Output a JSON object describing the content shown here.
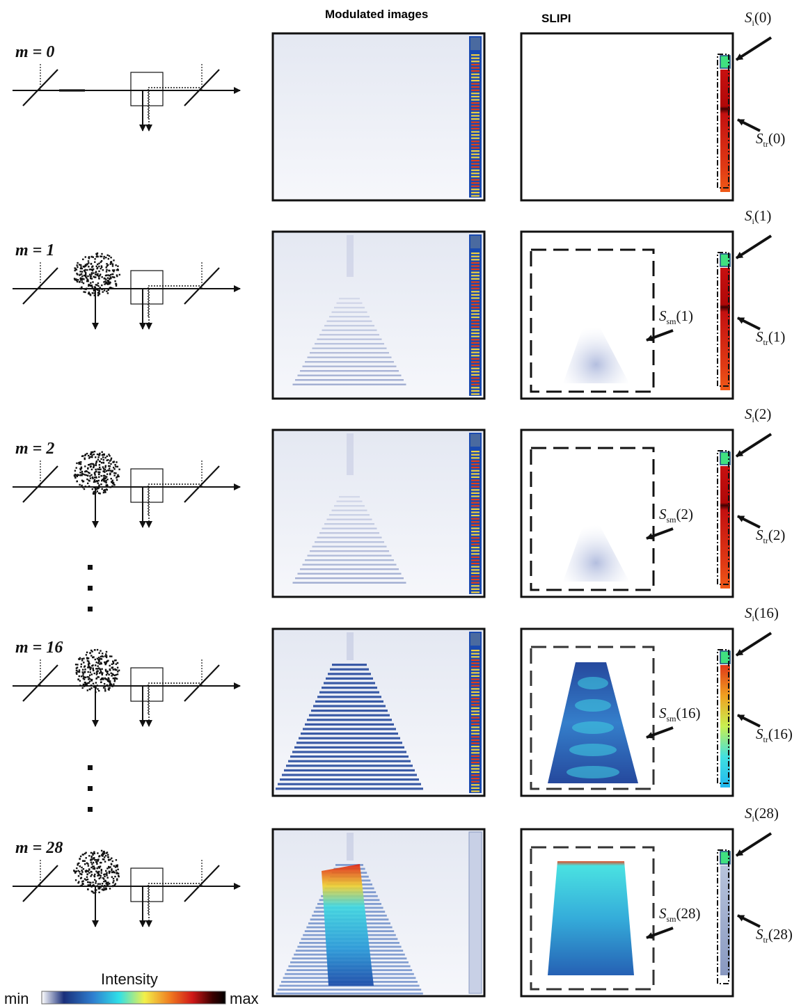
{
  "headers": {
    "modulated": "Modulated images",
    "slipi": "SLIPI"
  },
  "rows": [
    {
      "m_label": "m = 0",
      "m_value": "0",
      "has_sm": false,
      "si_label": "(0)",
      "str_label": "(0)",
      "ssm_label": ""
    },
    {
      "m_label": "m = 1",
      "m_value": "1",
      "has_sm": true,
      "si_label": "(1)",
      "str_label": "(1)",
      "ssm_label": "(1)"
    },
    {
      "m_label": "m = 2",
      "m_value": "2",
      "has_sm": true,
      "si_label": "(2)",
      "str_label": "(2)",
      "ssm_label": "(2)"
    },
    {
      "m_label": "m = 16",
      "m_value": "16",
      "has_sm": true,
      "si_label": "(16)",
      "str_label": "(16)",
      "ssm_label": "(16)"
    },
    {
      "m_label": "m = 28",
      "m_value": "28",
      "has_sm": true,
      "si_label": "(28)",
      "str_label": "(28)",
      "ssm_label": "(28)"
    }
  ],
  "symbols": {
    "S": "S",
    "sub_i": "i",
    "sub_tr": "tr",
    "sub_sm": "sm"
  },
  "colorbar": {
    "title": "Intensity",
    "min_label": "min",
    "max_label": "max",
    "colors": [
      "#ffffff",
      "#1a2f7a",
      "#2f7fd0",
      "#2fe0e8",
      "#f2f04a",
      "#f07a20",
      "#d01818",
      "#3a0000",
      "#000000"
    ]
  }
}
